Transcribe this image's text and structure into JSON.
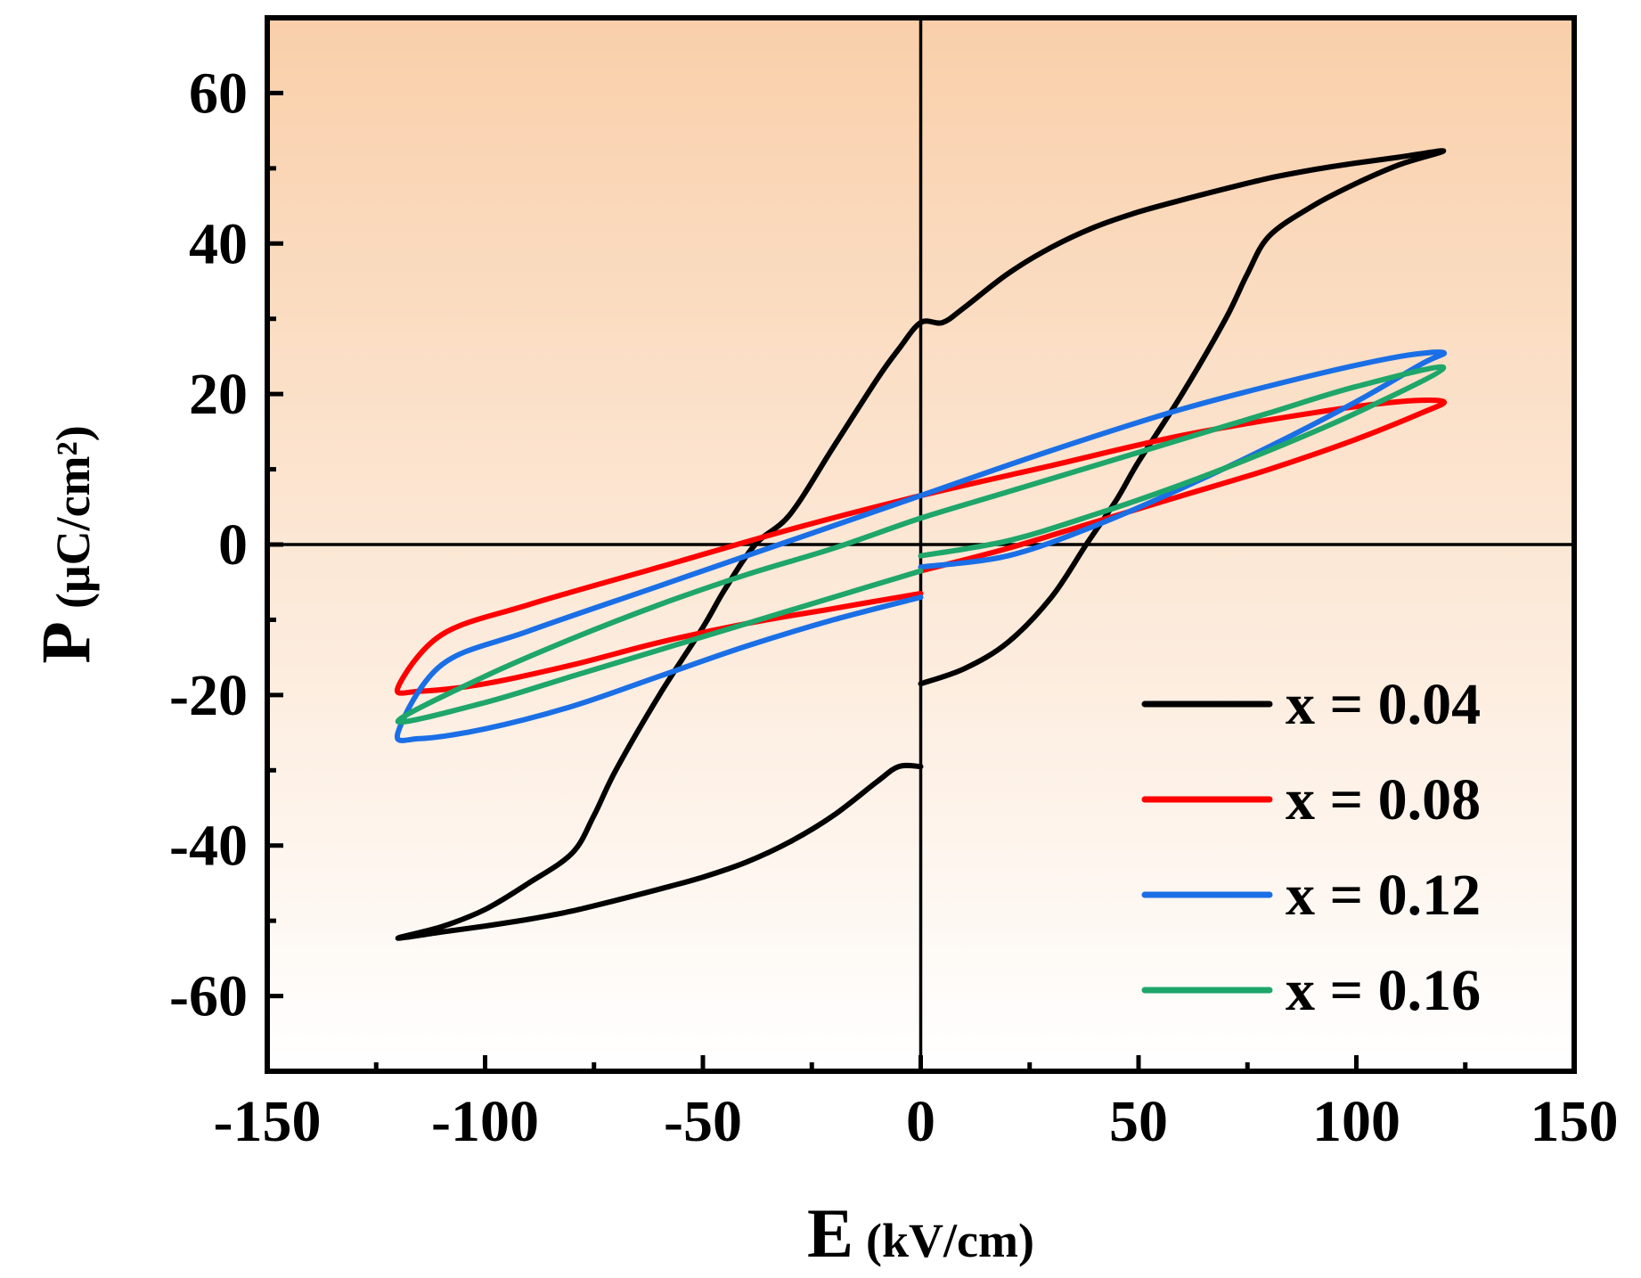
{
  "chart_data": {
    "type": "line",
    "title": "",
    "xlabel": "E",
    "xlabel_unit": "(kV/cm)",
    "ylabel": "P",
    "ylabel_unit": "(μC/cm²)",
    "xlim": [
      -150,
      150
    ],
    "ylim": [
      -70,
      70
    ],
    "xticks": [
      -150,
      -100,
      -50,
      0,
      50,
      100,
      150
    ],
    "xtick_labels": [
      "-150",
      "-100",
      "-50",
      "0",
      "50",
      "100",
      "150"
    ],
    "yticks": [
      -60,
      -40,
      -20,
      0,
      20,
      40,
      60
    ],
    "ytick_labels": [
      "-60",
      "-40",
      "-20",
      "0",
      "20",
      "40",
      "60"
    ],
    "background_gradient": [
      "#f9cfaa",
      "#ffffff"
    ],
    "grid": false,
    "zero_lines": true,
    "legend_position": "bottom-right",
    "series": [
      {
        "name": "x = 0.04",
        "color": "#000000",
        "x": [
          0,
          10,
          20,
          30,
          38,
          45,
          50,
          60,
          70,
          75,
          80,
          90,
          100,
          110,
          120,
          110,
          100,
          90,
          80,
          70,
          60,
          50,
          40,
          30,
          20,
          10,
          5,
          0,
          -5,
          -10,
          -20,
          -30,
          -38,
          -45,
          -50,
          -60,
          -70,
          -75,
          -80,
          -90,
          -100,
          -110,
          -120,
          -110,
          -100,
          -90,
          -80,
          -70,
          -60,
          -50,
          -40,
          -30,
          -20,
          -10,
          -5,
          0
        ],
        "y": [
          -18.5,
          -16.5,
          -13,
          -7,
          0,
          6,
          11,
          20,
          30,
          36,
          41,
          45,
          48,
          50.5,
          52.3,
          51.5,
          50.7,
          49.8,
          48.7,
          47.3,
          45.8,
          44.2,
          42.2,
          39.5,
          36,
          31.5,
          29.5,
          29.5,
          26,
          22,
          13,
          4,
          0,
          -6,
          -11,
          -20,
          -30,
          -36,
          -41,
          -45,
          -48.5,
          -50.8,
          -52.3,
          -51.5,
          -50.7,
          -49.8,
          -48.7,
          -47.3,
          -45.8,
          -44.2,
          -42.2,
          -39.5,
          -36,
          -31.5,
          -29.5,
          -29.5
        ]
      },
      {
        "name": "x = 0.08",
        "color": "#ff0000",
        "x": [
          0,
          20,
          40,
          60,
          80,
          100,
          115,
          120,
          110,
          90,
          60,
          30,
          0,
          -30,
          -60,
          -90,
          -110,
          -120,
          -115,
          -100,
          -80,
          -60,
          -40,
          -20,
          0
        ],
        "y": [
          -3.5,
          -0.5,
          3,
          6.5,
          10,
          14,
          17.5,
          19,
          19,
          17.5,
          14.5,
          10.5,
          6.5,
          2,
          -3,
          -8,
          -12,
          -19,
          -19.5,
          -18.5,
          -16,
          -13,
          -10.5,
          -8.5,
          -6.5
        ]
      },
      {
        "name": "x = 0.12",
        "color": "#1a6fe6",
        "x": [
          0,
          20,
          40,
          60,
          80,
          100,
          115,
          120,
          110,
          90,
          60,
          30,
          0,
          -30,
          -60,
          -90,
          -110,
          -120,
          -115,
          -100,
          -80,
          -60,
          -40,
          -20,
          0
        ],
        "y": [
          -3,
          -1.5,
          2.5,
          7.5,
          13,
          19,
          24,
          25.5,
          25,
          22.5,
          18,
          12.5,
          6.5,
          0.5,
          -5.5,
          -11.5,
          -16,
          -25,
          -25.8,
          -24.5,
          -21.5,
          -17.5,
          -13.5,
          -10,
          -7
        ]
      },
      {
        "name": "x = 0.16",
        "color": "#1fa66a",
        "x": [
          0,
          20,
          40,
          60,
          80,
          100,
          120,
          100,
          80,
          60,
          40,
          20,
          0,
          -20,
          -40,
          -60,
          -80,
          -100,
          -120,
          -100,
          -80,
          -60,
          -40,
          -20,
          0
        ],
        "y": [
          -1.5,
          0.5,
          4,
          8,
          12.5,
          17.5,
          23.5,
          21,
          17.5,
          14,
          10.5,
          7,
          3.5,
          -0.5,
          -4,
          -8,
          -12.5,
          -17.5,
          -23.5,
          -21,
          -17.5,
          -14,
          -10.5,
          -7,
          -3.5
        ]
      }
    ]
  }
}
